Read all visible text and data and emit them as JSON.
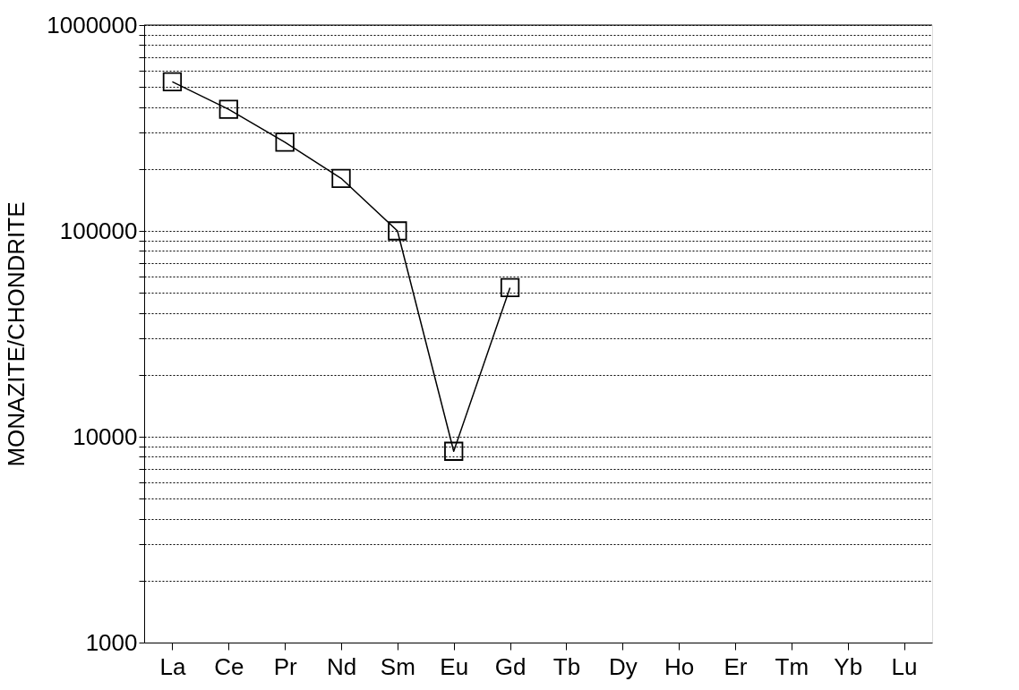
{
  "chart_data": {
    "type": "line",
    "ylabel": "MONAZITE/CHONDRITE",
    "categories": [
      "La",
      "Ce",
      "Pr",
      "Nd",
      "Sm",
      "Eu",
      "Gd",
      "Tb",
      "Dy",
      "Ho",
      "Er",
      "Tm",
      "Yb",
      "Lu"
    ],
    "series": [
      {
        "color": "#000000",
        "values": [
          530000,
          390000,
          270000,
          180000,
          100000,
          8500,
          53000,
          null,
          null,
          null,
          null,
          null,
          null,
          null
        ]
      }
    ],
    "log": "y",
    "ylim": [
      1000,
      1000000
    ],
    "yticks": [
      1000,
      {
        "value": 2000,
        "label": null
      },
      {
        "value": 3000,
        "label": null
      },
      {
        "value": 4000,
        "label": null
      },
      {
        "value": 5000,
        "label": null
      },
      {
        "value": 6000,
        "label": null
      },
      {
        "value": 7000,
        "label": null
      },
      {
        "value": 8000,
        "label": null
      },
      {
        "value": 9000,
        "label": null
      },
      10000,
      {
        "value": 20000,
        "label": null
      },
      {
        "value": 30000,
        "label": null
      },
      {
        "value": 40000,
        "label": null
      },
      {
        "value": 50000,
        "label": null
      },
      {
        "value": 60000,
        "label": null
      },
      {
        "value": 70000,
        "label": null
      },
      {
        "value": 80000,
        "label": null
      },
      {
        "value": 90000,
        "label": null
      },
      100000,
      {
        "value": 200000,
        "label": null
      },
      {
        "value": 300000,
        "label": null
      },
      {
        "value": 400000,
        "label": null
      },
      {
        "value": 500000,
        "label": null
      },
      {
        "value": 600000,
        "label": null
      },
      {
        "value": 700000,
        "label": null
      },
      {
        "value": 800000,
        "label": null
      },
      {
        "value": 900000,
        "label": null
      },
      1000000
    ],
    "grid": "y",
    "marker": "square",
    "line_style": "solid"
  }
}
